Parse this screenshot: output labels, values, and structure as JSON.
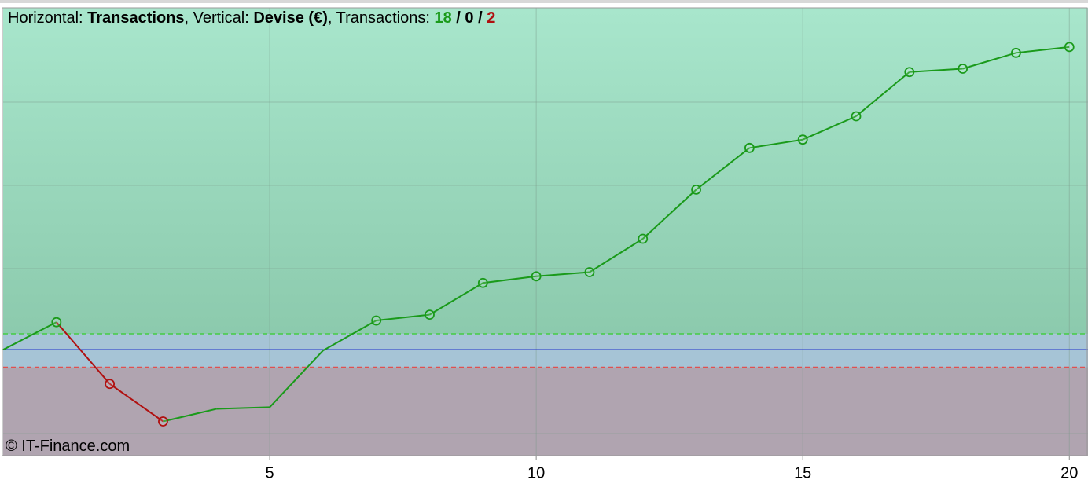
{
  "chart_data": {
    "type": "line",
    "title": {
      "h_label": "Horizontal: ",
      "h_value": "Transactions",
      "v_label": ", Vertical: ",
      "v_value": "Devise (€)",
      "t_label": ", Transactions: ",
      "wins": "18",
      "sep1": " / ",
      "neutral": "0",
      "sep2": " / ",
      "losses": "2"
    },
    "credit": "© IT-Finance.com",
    "x": [
      0,
      1,
      2,
      3,
      4,
      5,
      6,
      7,
      8,
      9,
      10,
      11,
      12,
      13,
      14,
      15,
      16,
      17,
      18,
      19,
      20
    ],
    "series": [
      {
        "color": "#1a9a1a",
        "values": [
          0,
          33,
          -41,
          -86,
          -71,
          -69,
          -1,
          35,
          42,
          80,
          88,
          93,
          133,
          192,
          242,
          252,
          280,
          333,
          337,
          356,
          363
        ],
        "marker_colors": [
          null,
          "#1a9a1a",
          "#b01010",
          "#b01010",
          null,
          null,
          null,
          "#1a9a1a",
          "#1a9a1a",
          "#1a9a1a",
          "#1a9a1a",
          "#1a9a1a",
          "#1a9a1a",
          "#1a9a1a",
          "#1a9a1a",
          "#1a9a1a",
          "#1a9a1a",
          "#1a9a1a",
          "#1a9a1a",
          "#1a9a1a",
          "#1a9a1a"
        ]
      }
    ],
    "baseline": {
      "value": 0,
      "color": "#2233cc"
    },
    "upper_band": {
      "value": 19,
      "color": "#44cc44"
    },
    "lower_band": {
      "value": -21,
      "color": "#e05050"
    },
    "xlim": [
      0,
      20.35
    ],
    "ylim": [
      -127,
      410
    ],
    "xticks": [
      5,
      10,
      15,
      20
    ],
    "grid": true
  }
}
